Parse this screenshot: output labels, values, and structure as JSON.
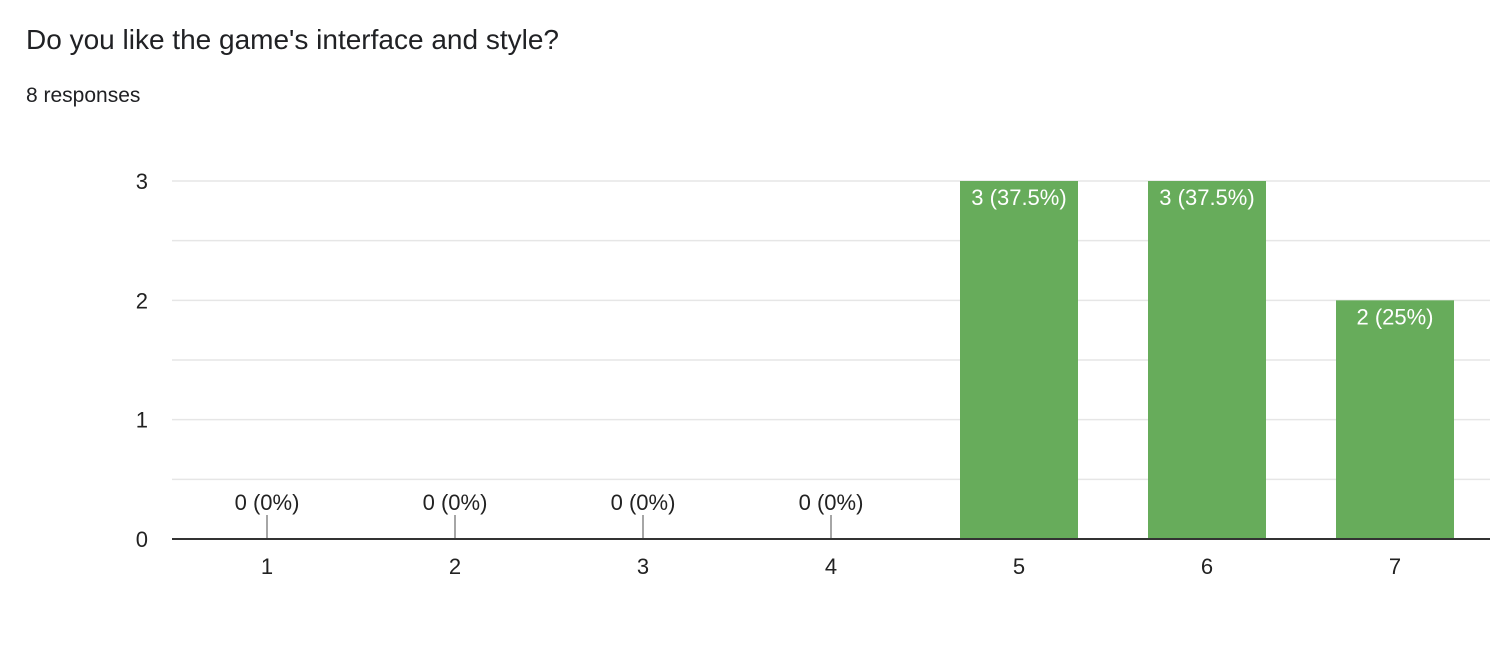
{
  "question": {
    "title": "Do you like the game's interface and style?",
    "responses": "8 responses"
  },
  "colors": {
    "bar": "#67ac5b",
    "grid": "#e6e6e6",
    "axis": "#333333",
    "text": "#222222"
  },
  "chart_data": {
    "type": "bar",
    "title": "",
    "xlabel": "",
    "ylabel": "",
    "categories": [
      "1",
      "2",
      "3",
      "4",
      "5",
      "6",
      "7"
    ],
    "values": [
      0,
      0,
      0,
      0,
      3,
      3,
      2
    ],
    "data_labels": [
      "0 (0%)",
      "0 (0%)",
      "0 (0%)",
      "0 (0%)",
      "3 (37.5%)",
      "3 (37.5%)",
      "2 (25%)"
    ],
    "yticks": [
      "0",
      "1",
      "2",
      "3"
    ],
    "ylim": [
      0,
      3
    ],
    "grid": true,
    "legend": "none"
  }
}
